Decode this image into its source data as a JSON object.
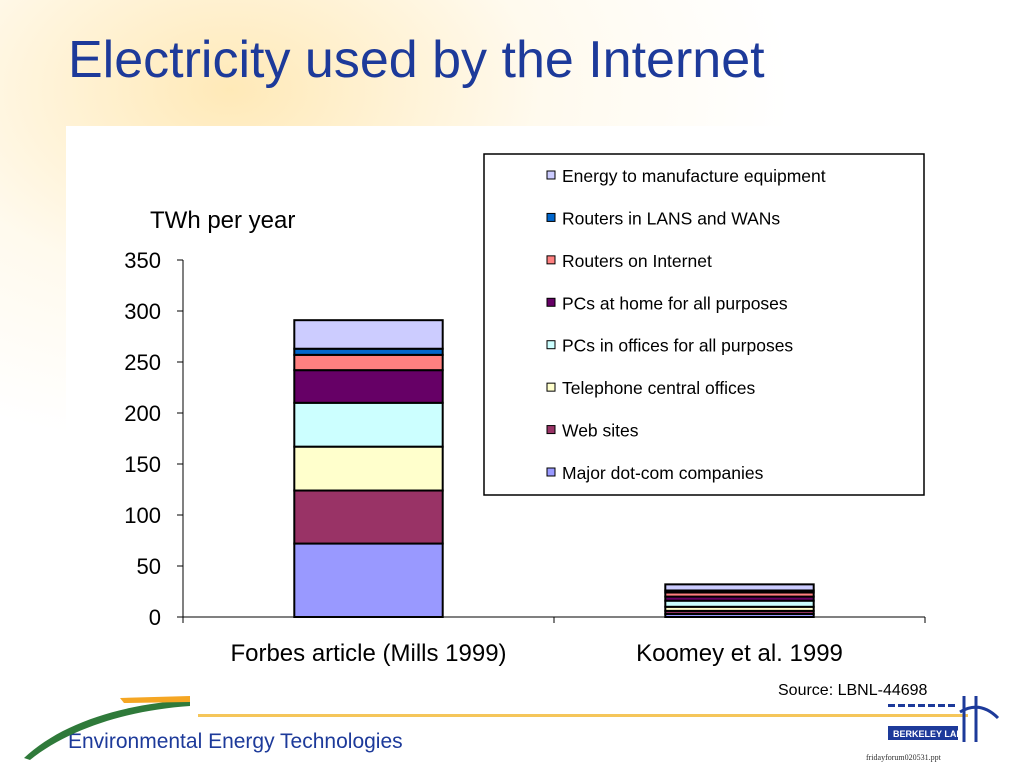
{
  "slide": {
    "title": "Electricity used by the Internet",
    "source": "Source:  LBNL-44698",
    "footer": "Environmental Energy Technologies",
    "file_name": "fridayforum020531.ppt",
    "logo_text": "BERKELEY LAB"
  },
  "colors": {
    "title": "#1d3a9a",
    "footer_line": "#f5c65a",
    "logo_green": "#2f7a3a"
  },
  "chart_data": {
    "type": "bar",
    "stacked": true,
    "ylabel": "TWh per year",
    "ylim": [
      0,
      350
    ],
    "yticks": [
      0,
      50,
      100,
      150,
      200,
      250,
      300,
      350
    ],
    "categories": [
      "Forbes article (Mills 1999)",
      "Koomey et al. 1999"
    ],
    "legend_position": "top-right",
    "series": [
      {
        "name": "Major dot-com companies",
        "color": "#9999ff",
        "values": [
          72,
          3
        ]
      },
      {
        "name": "Web sites",
        "color": "#993366",
        "values": [
          52,
          3
        ]
      },
      {
        "name": "Telephone central offices",
        "color": "#ffffcc",
        "values": [
          43,
          4
        ]
      },
      {
        "name": "PCs in offices for all purposes",
        "color": "#ccffff",
        "values": [
          43,
          6
        ]
      },
      {
        "name": "PCs at home for all purposes",
        "color": "#660066",
        "values": [
          32,
          4
        ]
      },
      {
        "name": "Routers on Internet",
        "color": "#ff8080",
        "values": [
          15,
          4
        ]
      },
      {
        "name": "Routers in LANS and WANs",
        "color": "#0066cc",
        "values": [
          6,
          2
        ]
      },
      {
        "name": "Energy to manufacture equipment",
        "color": "#ccccff",
        "values": [
          28,
          6
        ]
      }
    ]
  }
}
